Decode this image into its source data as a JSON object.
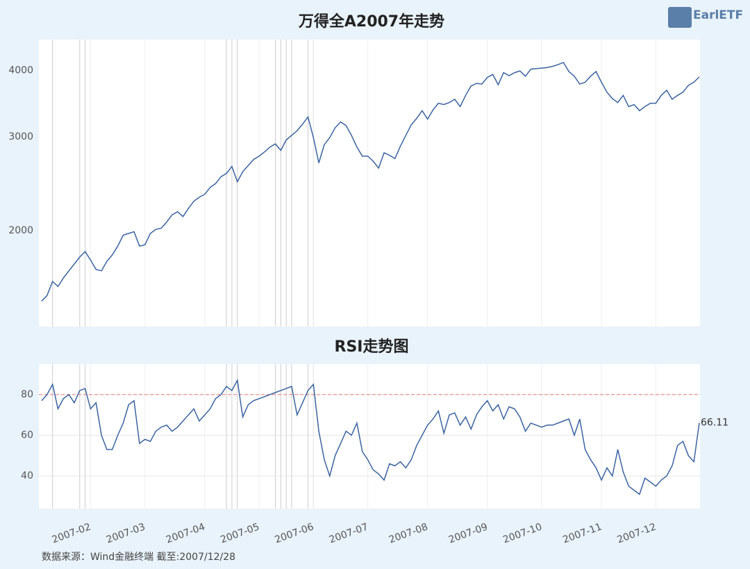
{
  "title_logo": "EarlETF",
  "source": "数据来源：Wind金融终端 截至:2007/12/28",
  "chart_data": [
    {
      "type": "line",
      "title": "万得全A2007年走势",
      "log_scale": true,
      "grid": false,
      "ylim": [
        1320,
        4570
      ],
      "yticks": [
        2000,
        3000,
        4000
      ],
      "categories": [
        null,
        null,
        null,
        null,
        null,
        null,
        null,
        null,
        null,
        "2007-02",
        null,
        null,
        null,
        null,
        null,
        null,
        null,
        null,
        null,
        "2007-03",
        null,
        null,
        null,
        null,
        null,
        null,
        null,
        null,
        null,
        null,
        "2007-04",
        null,
        null,
        null,
        null,
        null,
        null,
        null,
        null,
        null,
        "2007-05",
        null,
        null,
        null,
        null,
        null,
        null,
        null,
        null,
        null,
        "2007-06",
        null,
        null,
        null,
        null,
        null,
        null,
        null,
        null,
        null,
        "2007-07",
        null,
        null,
        null,
        null,
        null,
        null,
        null,
        null,
        null,
        null,
        "2007-08",
        null,
        null,
        null,
        null,
        null,
        null,
        null,
        null,
        null,
        null,
        "2007-09",
        null,
        null,
        null,
        null,
        null,
        null,
        null,
        null,
        null,
        "2007-10",
        null,
        null,
        null,
        null,
        null,
        null,
        null,
        null,
        null,
        null,
        "2007-11",
        null,
        null,
        null,
        null,
        null,
        null,
        null,
        null,
        null,
        "2007-12",
        null,
        null,
        null,
        null,
        null,
        null,
        null,
        null
      ],
      "series": [
        {
          "name": "万得全A",
          "color": "#3a63a0",
          "values": [
            1474,
            1510,
            1605,
            1570,
            1629,
            1679,
            1730,
            1783,
            1826,
            1760,
            1690,
            1680,
            1750,
            1800,
            1870,
            1960,
            1975,
            1990,
            1870,
            1880,
            1975,
            2010,
            2020,
            2075,
            2140,
            2170,
            2125,
            2200,
            2270,
            2310,
            2340,
            2410,
            2450,
            2525,
            2560,
            2640,
            2470,
            2580,
            2650,
            2720,
            2760,
            2810,
            2870,
            2910,
            2830,
            2960,
            3020,
            3080,
            3170,
            3270,
            2990,
            2680,
            2900,
            2990,
            3120,
            3200,
            3150,
            3020,
            2870,
            2760,
            2760,
            2700,
            2620,
            2800,
            2770,
            2730,
            2880,
            3020,
            3160,
            3250,
            3360,
            3240,
            3370,
            3470,
            3450,
            3480,
            3530,
            3420,
            3590,
            3740,
            3780,
            3770,
            3880,
            3930,
            3760,
            3960,
            3910,
            3960,
            3990,
            3900,
            4020,
            4030,
            4040,
            4050,
            4070,
            4100,
            4140,
            3980,
            3900,
            3770,
            3800,
            3900,
            3980,
            3800,
            3640,
            3540,
            3480,
            3590,
            3420,
            3450,
            3360,
            3420,
            3470,
            3470,
            3590,
            3670,
            3530,
            3590,
            3640,
            3750,
            3800,
            3890
          ]
        }
      ]
    },
    {
      "type": "line",
      "title": "RSI走势图",
      "grid": true,
      "ylim": [
        24,
        95
      ],
      "yticks": [
        40,
        60,
        80
      ],
      "threshold": 80,
      "threshold_color": "#e88080",
      "categories": [
        null,
        null,
        null,
        null,
        null,
        null,
        null,
        null,
        null,
        "2007-02",
        null,
        null,
        null,
        null,
        null,
        null,
        null,
        null,
        null,
        "2007-03",
        null,
        null,
        null,
        null,
        null,
        null,
        null,
        null,
        null,
        null,
        "2007-04",
        null,
        null,
        null,
        null,
        null,
        null,
        null,
        null,
        null,
        "2007-05",
        null,
        null,
        null,
        null,
        null,
        null,
        null,
        null,
        null,
        "2007-06",
        null,
        null,
        null,
        null,
        null,
        null,
        null,
        null,
        null,
        "2007-07",
        null,
        null,
        null,
        null,
        null,
        null,
        null,
        null,
        null,
        null,
        "2007-08",
        null,
        null,
        null,
        null,
        null,
        null,
        null,
        null,
        null,
        null,
        "2007-09",
        null,
        null,
        null,
        null,
        null,
        null,
        null,
        null,
        null,
        "2007-10",
        null,
        null,
        null,
        null,
        null,
        null,
        null,
        null,
        null,
        null,
        "2007-11",
        null,
        null,
        null,
        null,
        null,
        null,
        null,
        null,
        null,
        "2007-12",
        null,
        null,
        null,
        null,
        null,
        null,
        null,
        null
      ],
      "series": [
        {
          "name": "RSI",
          "color": "#3a63a0",
          "values": [
            77,
            80,
            85,
            73,
            78,
            80,
            76,
            82,
            83,
            73,
            76,
            60,
            53,
            53,
            60,
            66,
            75,
            77,
            56,
            58,
            57,
            62,
            64,
            65,
            62,
            64,
            67,
            70,
            73,
            67,
            70,
            73,
            78,
            80,
            84,
            82,
            87,
            69,
            75,
            77,
            78,
            79,
            80,
            81,
            82,
            83,
            84,
            70,
            76,
            82,
            85,
            62,
            48,
            40,
            50,
            56,
            62,
            60,
            66,
            52,
            48,
            43,
            41,
            38,
            46,
            45,
            47,
            44,
            48,
            55,
            60,
            65,
            68,
            72,
            61,
            70,
            71,
            65,
            69,
            63,
            70,
            74,
            77,
            72,
            75,
            68,
            74,
            73,
            69,
            62,
            66,
            65,
            64,
            65,
            65,
            66,
            67,
            68,
            60,
            68,
            53,
            48,
            44,
            38,
            44,
            40,
            53,
            42,
            35,
            33,
            31,
            39,
            37,
            35,
            38,
            40,
            45,
            55,
            57,
            50,
            47,
            66.11
          ]
        }
      ]
    }
  ]
}
